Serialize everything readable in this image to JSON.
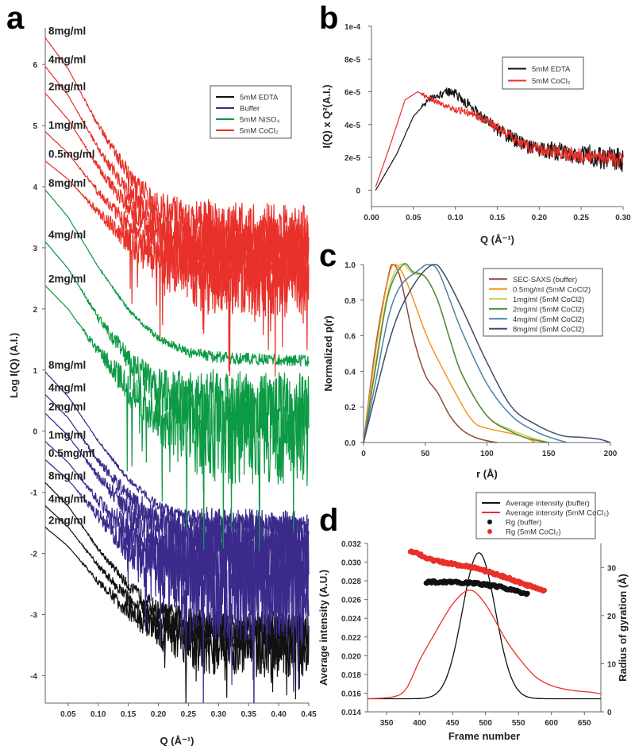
{
  "panels": {
    "a": "a",
    "b": "b",
    "c": "c",
    "d": "d"
  },
  "chart_data": [
    {
      "panel": "a",
      "type": "line",
      "title": "",
      "xlabel": "Q (Å⁻¹)",
      "ylabel": "Log I(Q) (A.I.)",
      "xlim": [
        0.012,
        0.45
      ],
      "ylim": [
        -4.45,
        6.6
      ],
      "xticks": [
        "0.05",
        "0.10",
        "0.15",
        "0.20",
        "0.25",
        "0.30",
        "0.35",
        "0.40",
        "0.45"
      ],
      "yticks": [
        "-4",
        "-3",
        "-2",
        "-1",
        "0",
        "1",
        "2",
        "3",
        "4",
        "5",
        "6"
      ],
      "grid": false,
      "legend": {
        "position": "top-right",
        "entries": [
          {
            "label": "5mM EDTA",
            "color": "#111111"
          },
          {
            "label": "Buffer",
            "color": "#3b2a8c"
          },
          {
            "label": "5mM NiSO₄",
            "color": "#0d9a45"
          },
          {
            "label": "5mM CoCl₂",
            "color": "#e8312a"
          }
        ]
      },
      "profile_q": [
        0.012,
        0.05,
        0.1,
        0.15,
        0.2,
        0.25,
        0.3,
        0.45
      ],
      "profile_fraction": [
        1,
        0.84,
        0.55,
        0.3,
        0.13,
        0.05,
        0.02,
        0
      ],
      "series": [
        {
          "group": "5mM CoCl₂",
          "label": "8mg/ml",
          "color": "#e8312a",
          "start": 6.44,
          "plateau": 3.25,
          "noise": 0.45
        },
        {
          "group": "5mM CoCl₂",
          "label": "4mg/ml",
          "color": "#e8312a",
          "start": 5.97,
          "plateau": 3.0,
          "noise": 0.5
        },
        {
          "group": "5mM CoCl₂",
          "label": "2mg/ml",
          "color": "#e8312a",
          "start": 5.53,
          "plateau": 2.85,
          "noise": 0.55
        },
        {
          "group": "5mM CoCl₂",
          "label": "1mg/ml",
          "color": "#e8312a",
          "start": 4.9,
          "plateau": 2.7,
          "noise": 0.6
        },
        {
          "group": "5mM CoCl₂",
          "label": "0.5mg/ml",
          "color": "#e8312a",
          "start": 4.42,
          "plateau": 2.55,
          "noise": 0.7
        },
        {
          "group": "5mM NiSO₄",
          "label": "8mg/ml",
          "color": "#0d9a45",
          "start": 3.95,
          "plateau": 1.15,
          "noise": 0.1
        },
        {
          "group": "5mM NiSO₄",
          "label": "4mg/ml",
          "color": "#0d9a45",
          "start": 3.1,
          "plateau": 0.35,
          "noise": 0.6
        },
        {
          "group": "5mM NiSO₄",
          "label": "2mg/ml",
          "color": "#0d9a45",
          "start": 2.38,
          "plateau": 0.0,
          "noise": 0.9
        },
        {
          "group": "Buffer",
          "label": "8mg/ml",
          "color": "#3b2a8c",
          "start": 0.97,
          "plateau": -1.55,
          "noise": 0.15
        },
        {
          "group": "Buffer",
          "label": "4mg/ml",
          "color": "#3b2a8c",
          "start": 0.6,
          "plateau": -1.8,
          "noise": 0.5
        },
        {
          "group": "Buffer",
          "label": "2mg/ml",
          "color": "#3b2a8c",
          "start": 0.29,
          "plateau": -2.0,
          "noise": 0.7
        },
        {
          "group": "Buffer",
          "label": "1mg/ml",
          "color": "#3b2a8c",
          "start": -0.17,
          "plateau": -2.3,
          "noise": 0.9
        },
        {
          "group": "Buffer",
          "label": "0.5mg/ml",
          "color": "#3b2a8c",
          "start": -0.47,
          "plateau": -2.5,
          "noise": 1.0
        },
        {
          "group": "5mM EDTA",
          "label": "8mg/ml",
          "color": "#111111",
          "start": -0.84,
          "plateau": -3.25,
          "noise": 0.3
        },
        {
          "group": "5mM EDTA",
          "label": "4mg/ml",
          "color": "#111111",
          "start": -1.22,
          "plateau": -3.4,
          "noise": 0.4
        },
        {
          "group": "5mM EDTA",
          "label": "2mg/ml",
          "color": "#111111",
          "start": -1.57,
          "plateau": -3.55,
          "noise": 0.5
        }
      ]
    },
    {
      "panel": "b",
      "type": "line",
      "title": "",
      "xlabel": "Q (Å⁻¹)",
      "ylabel": "I(Q) x Q²(A.I.)",
      "xlim": [
        0,
        0.3
      ],
      "ylim": [
        -1e-05,
        0.0001
      ],
      "xticks": [
        "0.00",
        "0.05",
        "0.10",
        "0.15",
        "0.20",
        "0.25",
        "0.30"
      ],
      "yticks": [
        "0",
        "2e-5",
        "4e-5",
        "6e-5",
        "8e-5",
        "1e-4"
      ],
      "legend": {
        "position": "top-right"
      },
      "series": [
        {
          "name": "5mM EDTA",
          "color": "#111111",
          "noise": 1.1e-05,
          "x": [
            0.005,
            0.03,
            0.05,
            0.07,
            0.09,
            0.1,
            0.12,
            0.15,
            0.18,
            0.2,
            0.25,
            0.3
          ],
          "y": [
            0,
            2.2e-05,
            4.5e-05,
            5.6e-05,
            6e-05,
            5.9e-05,
            5e-05,
            3.7e-05,
            2.8e-05,
            2.5e-05,
            2.2e-05,
            1.8e-05
          ]
        },
        {
          "name": "5mM CoCl₂",
          "color": "#e8312a",
          "noise": 8e-06,
          "x": [
            0.005,
            0.02,
            0.04,
            0.055,
            0.07,
            0.1,
            0.12,
            0.15,
            0.18,
            0.2,
            0.25,
            0.3
          ],
          "y": [
            2e-06,
            2.4e-05,
            5.5e-05,
            6e-05,
            5.6e-05,
            4.9e-05,
            4.7e-05,
            3.8e-05,
            2.8e-05,
            2.5e-05,
            2.1e-05,
            1.8e-05
          ]
        }
      ]
    },
    {
      "panel": "c",
      "type": "line",
      "title": "",
      "xlabel": "r (Å)",
      "ylabel": "Normalized p(r)",
      "xlim": [
        0,
        200
      ],
      "ylim": [
        0,
        1
      ],
      "xticks": [
        "0",
        "50",
        "100",
        "150",
        "200"
      ],
      "yticks": [
        "0.0",
        "0.2",
        "0.4",
        "0.6",
        "0.8",
        "1.0"
      ],
      "legend": {
        "position": "top-right"
      },
      "series": [
        {
          "name": "SEC-SAXS (buffer)",
          "color": "#8e4a3a",
          "x": [
            0,
            10,
            20,
            24,
            30,
            40,
            50,
            60,
            70,
            80,
            90,
            100,
            108
          ],
          "y": [
            0,
            0.55,
            0.93,
            1.0,
            0.92,
            0.6,
            0.38,
            0.28,
            0.15,
            0.07,
            0.03,
            0.01,
            0
          ]
        },
        {
          "name": "0.5mg/ml (5mM CoCl2)",
          "color": "#f7941d",
          "x": [
            0,
            10,
            20,
            26,
            35,
            50,
            60,
            80,
            90,
            100,
            120,
            130,
            140
          ],
          "y": [
            0,
            0.52,
            0.92,
            1.0,
            0.9,
            0.62,
            0.47,
            0.21,
            0.11,
            0.08,
            0.05,
            0.03,
            0
          ]
        },
        {
          "name": "1mg/ml (5mM CoCl2)",
          "color": "#c9c94e",
          "x": [
            0,
            10,
            20,
            30,
            40,
            50,
            60,
            70,
            80,
            100,
            120,
            135,
            150
          ],
          "y": [
            0,
            0.45,
            0.85,
            1.0,
            0.95,
            0.93,
            0.8,
            0.58,
            0.38,
            0.15,
            0.07,
            0.03,
            0
          ]
        },
        {
          "name": "2mg/ml (5mM CoCl2)",
          "color": "#4f8a3a",
          "x": [
            0,
            10,
            20,
            32,
            40,
            50,
            60,
            70,
            80,
            100,
            120,
            135,
            150
          ],
          "y": [
            0,
            0.43,
            0.83,
            1.0,
            0.96,
            0.93,
            0.8,
            0.58,
            0.38,
            0.15,
            0.06,
            0.02,
            0
          ]
        },
        {
          "name": "4mg/ml (5mM CoCl2)",
          "color": "#4b82a3",
          "x": [
            0,
            10,
            20,
            30,
            45,
            52,
            60,
            70,
            80,
            100,
            120,
            140,
            155,
            165
          ],
          "y": [
            0,
            0.35,
            0.7,
            0.88,
            0.97,
            1.0,
            0.97,
            0.8,
            0.62,
            0.33,
            0.15,
            0.06,
            0.02,
            0
          ]
        },
        {
          "name": "8mg/ml (5mM CoCl2)",
          "color": "#3a4e6e",
          "x": [
            0,
            10,
            20,
            30,
            45,
            57,
            65,
            80,
            100,
            120,
            140,
            160,
            175,
            190,
            200
          ],
          "y": [
            0,
            0.28,
            0.55,
            0.75,
            0.93,
            1.0,
            0.95,
            0.75,
            0.45,
            0.2,
            0.1,
            0.04,
            0.03,
            0.02,
            0
          ]
        }
      ]
    },
    {
      "panel": "d",
      "type": "line",
      "title": "",
      "xlabel": "Frame number",
      "ylabel": "Average intensity (A.U.)",
      "y2label": "Radius of gyration (Å)",
      "xlim": [
        321,
        675
      ],
      "ylim": [
        0.014,
        0.032
      ],
      "y2lim": [
        0,
        35
      ],
      "xticks": [
        "350",
        "400",
        "450",
        "500",
        "550",
        "600",
        "650"
      ],
      "yticks": [
        "0.014",
        "0.016",
        "0.018",
        "0.020",
        "0.022",
        "0.024",
        "0.026",
        "0.028",
        "0.030",
        "0.032"
      ],
      "y2ticks": [
        "0",
        "10",
        "20",
        "30"
      ],
      "legend": {
        "position": "top-right"
      },
      "series": [
        {
          "name": "Average intensity (buffer)",
          "kind": "line",
          "color": "#111111",
          "baseline": 0.0154,
          "peak": 0.031,
          "center": 490,
          "sigma": 25
        },
        {
          "name": "Average intensity (5mM CoCl₂)",
          "kind": "line",
          "color": "#e8312a",
          "x": [
            321,
            360,
            380,
            400,
            420,
            450,
            476,
            500,
            530,
            550,
            575,
            600,
            630,
            660,
            675
          ],
          "y": [
            0.0154,
            0.0156,
            0.0165,
            0.0195,
            0.022,
            0.0255,
            0.027,
            0.0255,
            0.0218,
            0.0198,
            0.0178,
            0.0168,
            0.0163,
            0.0161,
            0.0159
          ]
        },
        {
          "name": "Rg (buffer)",
          "kind": "scatter",
          "axis": "y2",
          "color": "#111111",
          "x": [
            410,
            440,
            480,
            520,
            565
          ],
          "y": [
            27,
            27,
            26.8,
            26,
            24.5
          ]
        },
        {
          "name": "Rg (5mM CoCl₂)",
          "kind": "scatter",
          "axis": "y2",
          "color": "#e8312a",
          "x": [
            386,
            420,
            480,
            520,
            560,
            590
          ],
          "y": [
            33.5,
            31.5,
            30,
            28.5,
            26.5,
            25
          ]
        }
      ]
    }
  ]
}
